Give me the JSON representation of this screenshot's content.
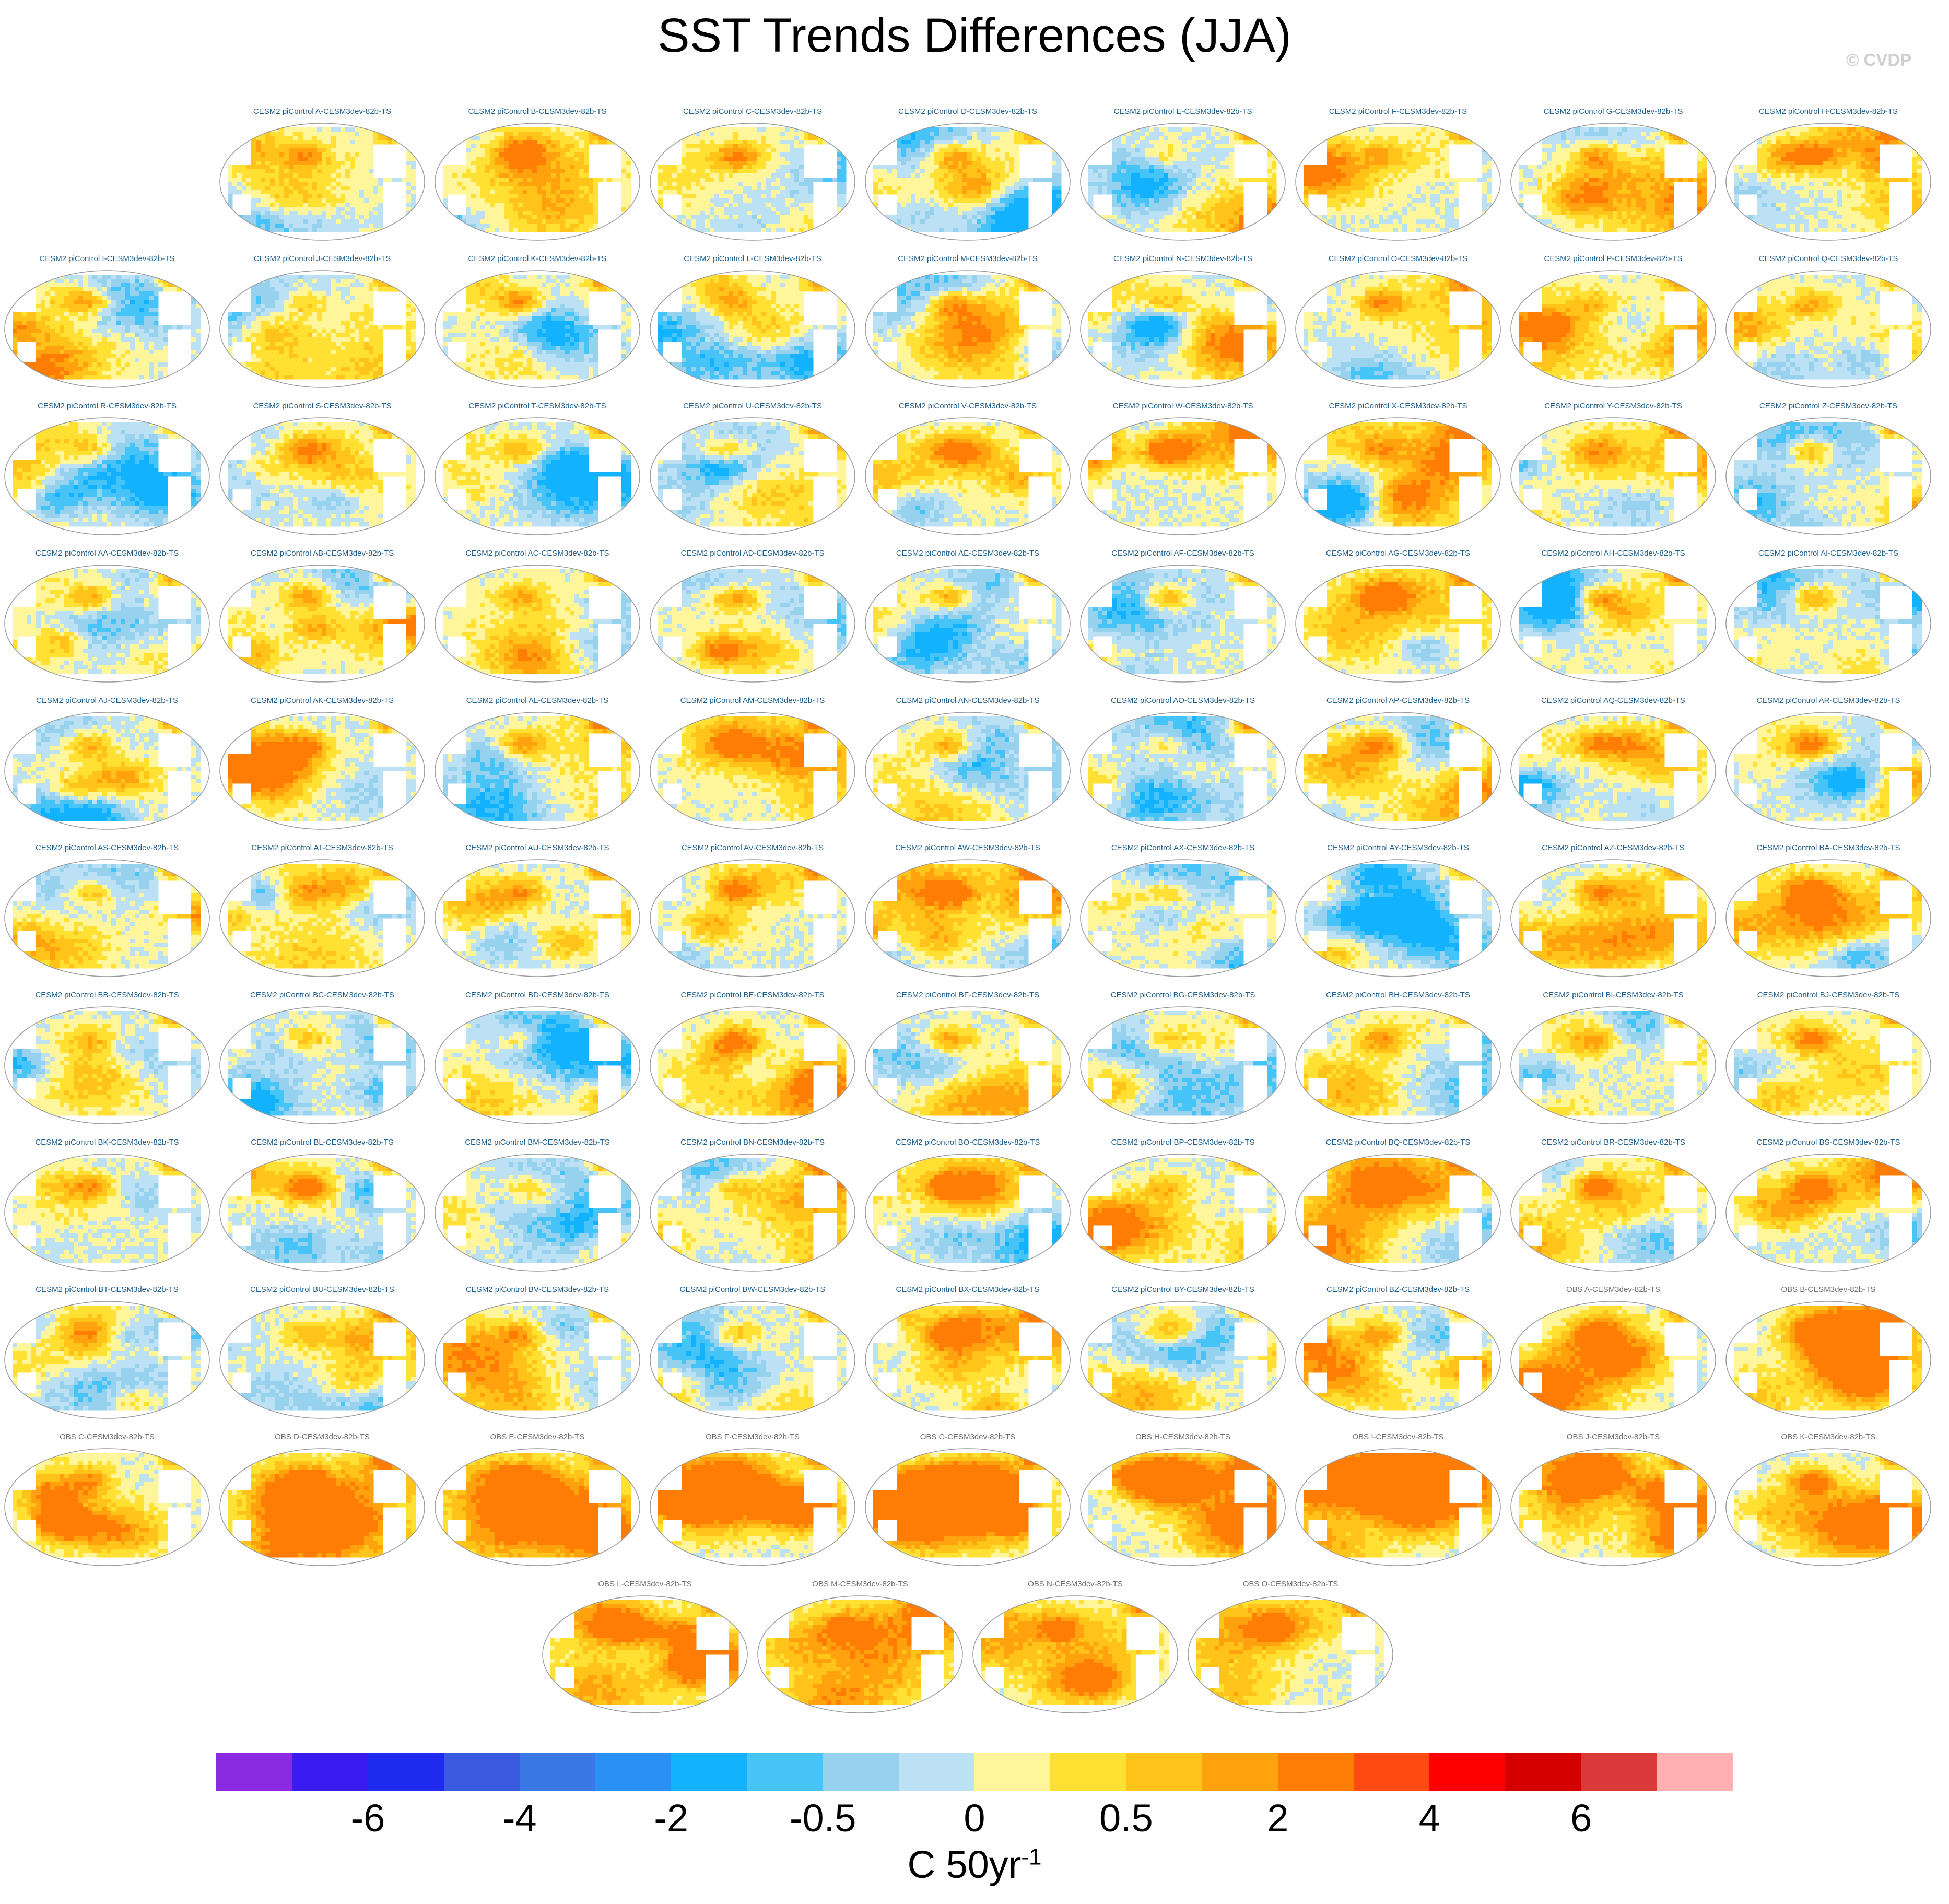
{
  "chart_data": {
    "type": "heatmap",
    "title": "SST Trends Differences (JJA)",
    "watermark": "© CVDP",
    "projection": "global map panels",
    "colorbar": {
      "colors": [
        "#8a2be2",
        "#3a1cf0",
        "#1f2cf0",
        "#3a5ae0",
        "#3a78e6",
        "#2a90f5",
        "#12b2ff",
        "#46c4f8",
        "#96d2ee",
        "#bde1f4",
        "#fff59a",
        "#ffe033",
        "#ffc31a",
        "#ffa20d",
        "#ff7d05",
        "#ff4a12",
        "#ff0000",
        "#d40000",
        "#da3a3a",
        "#ffb0b0"
      ],
      "tick_labels": [
        "-6",
        "-4",
        "-2",
        "-0.5",
        "0",
        "0.5",
        "2",
        "4",
        "6"
      ],
      "units_base": "C 50yr",
      "units_exp": "-1"
    },
    "panels": [
      {
        "label": "CESM2 piControl A-CESM3dev-82b-TS",
        "group": "cesm"
      },
      {
        "label": "CESM2 piControl B-CESM3dev-82b-TS",
        "group": "cesm"
      },
      {
        "label": "CESM2 piControl C-CESM3dev-82b-TS",
        "group": "cesm"
      },
      {
        "label": "CESM2 piControl D-CESM3dev-82b-TS",
        "group": "cesm"
      },
      {
        "label": "CESM2 piControl E-CESM3dev-82b-TS",
        "group": "cesm"
      },
      {
        "label": "CESM2 piControl F-CESM3dev-82b-TS",
        "group": "cesm"
      },
      {
        "label": "CESM2 piControl G-CESM3dev-82b-TS",
        "group": "cesm"
      },
      {
        "label": "CESM2 piControl H-CESM3dev-82b-TS",
        "group": "cesm"
      },
      {
        "label": "CESM2 piControl I-CESM3dev-82b-TS",
        "group": "cesm"
      },
      {
        "label": "CESM2 piControl J-CESM3dev-82b-TS",
        "group": "cesm"
      },
      {
        "label": "CESM2 piControl K-CESM3dev-82b-TS",
        "group": "cesm"
      },
      {
        "label": "CESM2 piControl L-CESM3dev-82b-TS",
        "group": "cesm"
      },
      {
        "label": "CESM2 piControl M-CESM3dev-82b-TS",
        "group": "cesm"
      },
      {
        "label": "CESM2 piControl N-CESM3dev-82b-TS",
        "group": "cesm"
      },
      {
        "label": "CESM2 piControl O-CESM3dev-82b-TS",
        "group": "cesm"
      },
      {
        "label": "CESM2 piControl P-CESM3dev-82b-TS",
        "group": "cesm"
      },
      {
        "label": "CESM2 piControl Q-CESM3dev-82b-TS",
        "group": "cesm"
      },
      {
        "label": "CESM2 piControl R-CESM3dev-82b-TS",
        "group": "cesm"
      },
      {
        "label": "CESM2 piControl S-CESM3dev-82b-TS",
        "group": "cesm"
      },
      {
        "label": "CESM2 piControl T-CESM3dev-82b-TS",
        "group": "cesm"
      },
      {
        "label": "CESM2 piControl U-CESM3dev-82b-TS",
        "group": "cesm"
      },
      {
        "label": "CESM2 piControl V-CESM3dev-82b-TS",
        "group": "cesm"
      },
      {
        "label": "CESM2 piControl W-CESM3dev-82b-TS",
        "group": "cesm"
      },
      {
        "label": "CESM2 piControl X-CESM3dev-82b-TS",
        "group": "cesm"
      },
      {
        "label": "CESM2 piControl Y-CESM3dev-82b-TS",
        "group": "cesm"
      },
      {
        "label": "CESM2 piControl Z-CESM3dev-82b-TS",
        "group": "cesm"
      },
      {
        "label": "CESM2 piControl AA-CESM3dev-82b-TS",
        "group": "cesm"
      },
      {
        "label": "CESM2 piControl AB-CESM3dev-82b-TS",
        "group": "cesm"
      },
      {
        "label": "CESM2 piControl AC-CESM3dev-82b-TS",
        "group": "cesm"
      },
      {
        "label": "CESM2 piControl AD-CESM3dev-82b-TS",
        "group": "cesm"
      },
      {
        "label": "CESM2 piControl AE-CESM3dev-82b-TS",
        "group": "cesm"
      },
      {
        "label": "CESM2 piControl AF-CESM3dev-82b-TS",
        "group": "cesm"
      },
      {
        "label": "CESM2 piControl AG-CESM3dev-82b-TS",
        "group": "cesm"
      },
      {
        "label": "CESM2 piControl AH-CESM3dev-82b-TS",
        "group": "cesm"
      },
      {
        "label": "CESM2 piControl AI-CESM3dev-82b-TS",
        "group": "cesm"
      },
      {
        "label": "CESM2 piControl AJ-CESM3dev-82b-TS",
        "group": "cesm"
      },
      {
        "label": "CESM2 piControl AK-CESM3dev-82b-TS",
        "group": "cesm"
      },
      {
        "label": "CESM2 piControl AL-CESM3dev-82b-TS",
        "group": "cesm"
      },
      {
        "label": "CESM2 piControl AM-CESM3dev-82b-TS",
        "group": "cesm"
      },
      {
        "label": "CESM2 piControl AN-CESM3dev-82b-TS",
        "group": "cesm"
      },
      {
        "label": "CESM2 piControl AO-CESM3dev-82b-TS",
        "group": "cesm"
      },
      {
        "label": "CESM2 piControl AP-CESM3dev-82b-TS",
        "group": "cesm"
      },
      {
        "label": "CESM2 piControl AQ-CESM3dev-82b-TS",
        "group": "cesm"
      },
      {
        "label": "CESM2 piControl AR-CESM3dev-82b-TS",
        "group": "cesm"
      },
      {
        "label": "CESM2 piControl AS-CESM3dev-82b-TS",
        "group": "cesm"
      },
      {
        "label": "CESM2 piControl AT-CESM3dev-82b-TS",
        "group": "cesm"
      },
      {
        "label": "CESM2 piControl AU-CESM3dev-82b-TS",
        "group": "cesm"
      },
      {
        "label": "CESM2 piControl AV-CESM3dev-82b-TS",
        "group": "cesm"
      },
      {
        "label": "CESM2 piControl AW-CESM3dev-82b-TS",
        "group": "cesm"
      },
      {
        "label": "CESM2 piControl AX-CESM3dev-82b-TS",
        "group": "cesm"
      },
      {
        "label": "CESM2 piControl AY-CESM3dev-82b-TS",
        "group": "cesm"
      },
      {
        "label": "CESM2 piControl AZ-CESM3dev-82b-TS",
        "group": "cesm"
      },
      {
        "label": "CESM2 piControl BA-CESM3dev-82b-TS",
        "group": "cesm"
      },
      {
        "label": "CESM2 piControl BB-CESM3dev-82b-TS",
        "group": "cesm"
      },
      {
        "label": "CESM2 piControl BC-CESM3dev-82b-TS",
        "group": "cesm"
      },
      {
        "label": "CESM2 piControl BD-CESM3dev-82b-TS",
        "group": "cesm"
      },
      {
        "label": "CESM2 piControl BE-CESM3dev-82b-TS",
        "group": "cesm"
      },
      {
        "label": "CESM2 piControl BF-CESM3dev-82b-TS",
        "group": "cesm"
      },
      {
        "label": "CESM2 piControl BG-CESM3dev-82b-TS",
        "group": "cesm"
      },
      {
        "label": "CESM2 piControl BH-CESM3dev-82b-TS",
        "group": "cesm"
      },
      {
        "label": "CESM2 piControl BI-CESM3dev-82b-TS",
        "group": "cesm"
      },
      {
        "label": "CESM2 piControl BJ-CESM3dev-82b-TS",
        "group": "cesm"
      },
      {
        "label": "CESM2 piControl BK-CESM3dev-82b-TS",
        "group": "cesm"
      },
      {
        "label": "CESM2 piControl BL-CESM3dev-82b-TS",
        "group": "cesm"
      },
      {
        "label": "CESM2 piControl BM-CESM3dev-82b-TS",
        "group": "cesm"
      },
      {
        "label": "CESM2 piControl BN-CESM3dev-82b-TS",
        "group": "cesm"
      },
      {
        "label": "CESM2 piControl BO-CESM3dev-82b-TS",
        "group": "cesm"
      },
      {
        "label": "CESM2 piControl BP-CESM3dev-82b-TS",
        "group": "cesm"
      },
      {
        "label": "CESM2 piControl BQ-CESM3dev-82b-TS",
        "group": "cesm"
      },
      {
        "label": "CESM2 piControl BR-CESM3dev-82b-TS",
        "group": "cesm"
      },
      {
        "label": "CESM2 piControl BS-CESM3dev-82b-TS",
        "group": "cesm"
      },
      {
        "label": "CESM2 piControl BT-CESM3dev-82b-TS",
        "group": "cesm"
      },
      {
        "label": "CESM2 piControl BU-CESM3dev-82b-TS",
        "group": "cesm"
      },
      {
        "label": "CESM2 piControl BV-CESM3dev-82b-TS",
        "group": "cesm"
      },
      {
        "label": "CESM2 piControl BW-CESM3dev-82b-TS",
        "group": "cesm"
      },
      {
        "label": "CESM2 piControl BX-CESM3dev-82b-TS",
        "group": "cesm"
      },
      {
        "label": "CESM2 piControl BY-CESM3dev-82b-TS",
        "group": "cesm"
      },
      {
        "label": "CESM2 piControl BZ-CESM3dev-82b-TS",
        "group": "cesm"
      },
      {
        "label": "OBS A-CESM3dev-82b-TS",
        "group": "obs"
      },
      {
        "label": "OBS B-CESM3dev-82b-TS",
        "group": "obs"
      },
      {
        "label": "OBS C-CESM3dev-82b-TS",
        "group": "obs"
      },
      {
        "label": "OBS D-CESM3dev-82b-TS",
        "group": "obs"
      },
      {
        "label": "OBS E-CESM3dev-82b-TS",
        "group": "obs"
      },
      {
        "label": "OBS F-CESM3dev-82b-TS",
        "group": "obs"
      },
      {
        "label": "OBS G-CESM3dev-82b-TS",
        "group": "obs"
      },
      {
        "label": "OBS H-CESM3dev-82b-TS",
        "group": "obs"
      },
      {
        "label": "OBS I-CESM3dev-82b-TS",
        "group": "obs"
      },
      {
        "label": "OBS J-CESM3dev-82b-TS",
        "group": "obs"
      },
      {
        "label": "OBS K-CESM3dev-82b-TS",
        "group": "obs"
      },
      {
        "label": "OBS L-CESM3dev-82b-TS",
        "group": "obs"
      },
      {
        "label": "OBS M-CESM3dev-82b-TS",
        "group": "obs"
      },
      {
        "label": "OBS N-CESM3dev-82b-TS",
        "group": "obs"
      },
      {
        "label": "OBS O-CESM3dev-82b-TS",
        "group": "obs"
      }
    ]
  }
}
